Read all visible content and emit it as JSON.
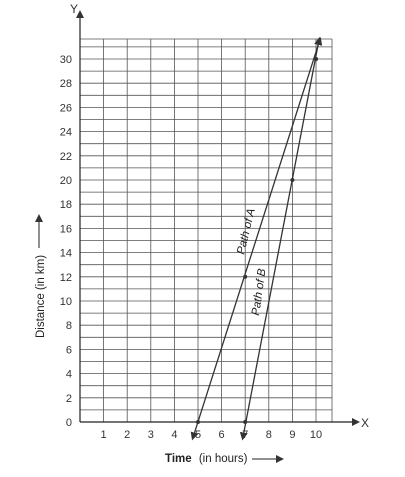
{
  "chart_data": {
    "type": "line",
    "title": "",
    "axis_letters": {
      "x": "X",
      "y": "Y"
    },
    "xlabel": {
      "bold": "Time",
      "rest": "(in hours)"
    },
    "ylabel": "Distance (in km)",
    "xlim": [
      0,
      10.7
    ],
    "ylim": [
      0,
      31.5
    ],
    "x_ticks": [
      1,
      2,
      3,
      4,
      5,
      6,
      7,
      8,
      9,
      10
    ],
    "x_tick_labels": [
      "1",
      "2",
      "3",
      "4",
      "5",
      "6",
      "7",
      "8",
      "9",
      "10"
    ],
    "y_ticks": [
      0,
      2,
      4,
      6,
      8,
      10,
      12,
      14,
      16,
      18,
      20,
      22,
      24,
      26,
      28,
      30
    ],
    "y_tick_labels": [
      "0",
      "2",
      "4",
      "6",
      "8",
      "10",
      "12",
      "14",
      "16",
      "18",
      "20",
      "22",
      "24",
      "26",
      "28",
      "30"
    ],
    "grid": true,
    "series": [
      {
        "name": "Path of A",
        "x": [
          5,
          7,
          10
        ],
        "y": [
          0,
          12,
          30
        ],
        "extend": {
          "start": [
            4.8,
            -1.2
          ],
          "end": [
            10.15,
            31.5
          ]
        },
        "color": "#333333"
      },
      {
        "name": "Path of B",
        "x": [
          7,
          9,
          10
        ],
        "y": [
          0,
          20,
          30
        ],
        "extend": {
          "start": [
            6.91,
            -1.2
          ],
          "end": [
            10.12,
            31.5
          ]
        },
        "color": "#333333"
      }
    ]
  }
}
